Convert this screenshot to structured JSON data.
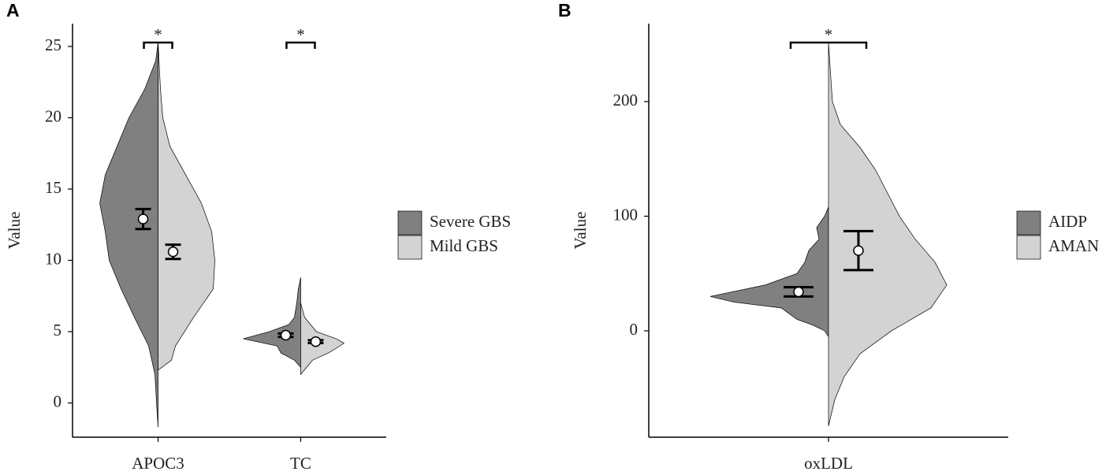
{
  "chart_data": [
    {
      "type": "split-violin",
      "panel": "A",
      "ylabel": "Value",
      "categories": [
        "APOC3",
        "TC"
      ],
      "ylim": [
        -2.4,
        26.6
      ],
      "yticks": [
        0,
        5,
        10,
        15,
        20,
        25
      ],
      "significance": [
        "*",
        "*"
      ],
      "legend": "right",
      "series": [
        {
          "name": "Severe GBS",
          "color": "#808080",
          "values": [
            12.9,
            4.75
          ],
          "errors": [
            0.7,
            0.12
          ],
          "violins": [
            {
              "y": [
                25.3,
                24,
                22,
                20,
                18,
                16,
                14,
                12,
                10,
                8,
                6,
                4,
                2,
                0,
                -1.7
              ],
              "density": [
                0,
                3,
                17,
                37,
                52,
                67,
                74,
                67,
                62,
                47,
                30,
                12,
                4,
                2,
                0
              ]
            },
            {
              "y": [
                8.8,
                8,
                7,
                6,
                5.5,
                5,
                4.5,
                4,
                3.5,
                3,
                2.5
              ],
              "density": [
                0,
                3,
                5,
                8,
                15,
                40,
                73,
                30,
                25,
                8,
                0
              ]
            }
          ]
        },
        {
          "name": "Mild GBS",
          "color": "#d3d3d3",
          "values": [
            10.6,
            4.3
          ],
          "errors": [
            0.5,
            0.1
          ],
          "violins": [
            {
              "y": [
                25.3,
                22,
                20,
                18,
                16,
                14,
                12,
                10,
                8,
                6,
                4,
                3,
                2.3
              ],
              "density": [
                0,
                3,
                6,
                15,
                35,
                55,
                68,
                72,
                70,
                45,
                22,
                17,
                0
              ]
            },
            {
              "y": [
                7,
                6,
                5,
                4.5,
                4.2,
                4,
                3.5,
                3,
                2
              ],
              "density": [
                0,
                5,
                20,
                45,
                55,
                50,
                35,
                15,
                0
              ]
            }
          ]
        }
      ]
    },
    {
      "type": "split-violin",
      "panel": "B",
      "ylabel": "Value",
      "categories": [
        "oxLDL"
      ],
      "ylim": [
        -92.8,
        268
      ],
      "yticks": [
        0,
        100,
        200
      ],
      "significance": [
        "*"
      ],
      "legend": "right",
      "series": [
        {
          "name": "AIDP",
          "color": "#808080",
          "values": [
            34
          ],
          "errors": [
            4
          ],
          "violins": [
            {
              "y": [
                108,
                100,
                90,
                80,
                70,
                60,
                50,
                40,
                30,
                25,
                20,
                10,
                5,
                0,
                -5
              ],
              "density": [
                0,
                5,
                15,
                12,
                25,
                30,
                40,
                80,
                150,
                120,
                60,
                40,
                20,
                5,
                0
              ]
            }
          ]
        },
        {
          "name": "AMAN",
          "color": "#d3d3d3",
          "values": [
            70
          ],
          "errors": [
            17
          ],
          "violins": [
            {
              "y": [
                252,
                230,
                200,
                180,
                160,
                140,
                120,
                100,
                80,
                60,
                40,
                20,
                0,
                -20,
                -40,
                -60,
                -83
              ],
              "density": [
                0,
                2,
                5,
                15,
                40,
                60,
                75,
                90,
                110,
                135,
                150,
                130,
                80,
                40,
                20,
                8,
                0
              ]
            }
          ]
        }
      ]
    }
  ]
}
